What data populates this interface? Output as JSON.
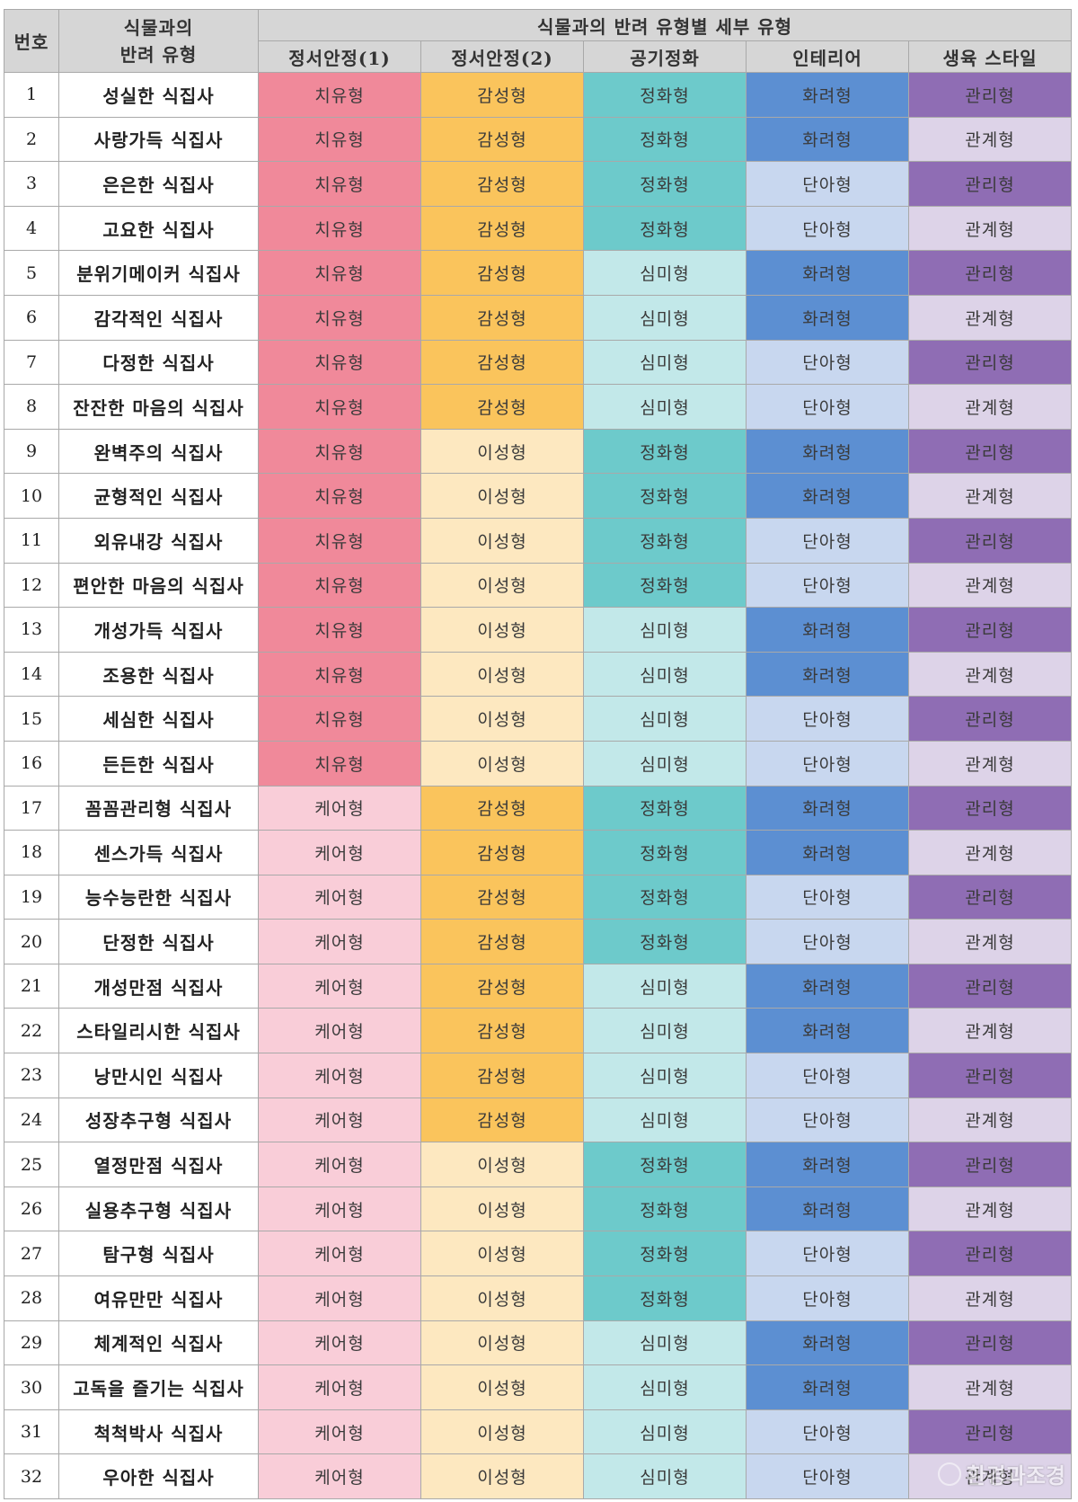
{
  "header": {
    "number": "번호",
    "type_title": "식물과의\n반려 유형",
    "group_title": "식물과의 반려 유형별 세부 유형",
    "columns": [
      "정서안정(1)",
      "정서안정(2)",
      "공기정화",
      "인테리어",
      "생육 스타일"
    ]
  },
  "colors": {
    "치유형": "#f0899a",
    "케어형": "#f9cdd8",
    "감성형": "#fac45c",
    "이성형": "#fde8c0",
    "정화형": "#6dcacb",
    "심미형": "#c2e8e9",
    "화려형": "#5c8fd2",
    "단아형": "#c8d7ef",
    "관리형": "#8f6db4",
    "관계형": "#ddd3e8"
  },
  "rows": [
    {
      "no": "1",
      "name": "성실한 식집사",
      "t": [
        "치유형",
        "감성형",
        "정화형",
        "화려형",
        "관리형"
      ]
    },
    {
      "no": "2",
      "name": "사랑가득 식집사",
      "t": [
        "치유형",
        "감성형",
        "정화형",
        "화려형",
        "관계형"
      ]
    },
    {
      "no": "3",
      "name": "은은한 식집사",
      "t": [
        "치유형",
        "감성형",
        "정화형",
        "단아형",
        "관리형"
      ]
    },
    {
      "no": "4",
      "name": "고요한 식집사",
      "t": [
        "치유형",
        "감성형",
        "정화형",
        "단아형",
        "관계형"
      ]
    },
    {
      "no": "5",
      "name": "분위기메이커 식집사",
      "t": [
        "치유형",
        "감성형",
        "심미형",
        "화려형",
        "관리형"
      ]
    },
    {
      "no": "6",
      "name": "감각적인 식집사",
      "t": [
        "치유형",
        "감성형",
        "심미형",
        "화려형",
        "관계형"
      ]
    },
    {
      "no": "7",
      "name": "다정한 식집사",
      "t": [
        "치유형",
        "감성형",
        "심미형",
        "단아형",
        "관리형"
      ]
    },
    {
      "no": "8",
      "name": "잔잔한 마음의 식집사",
      "t": [
        "치유형",
        "감성형",
        "심미형",
        "단아형",
        "관계형"
      ]
    },
    {
      "no": "9",
      "name": "완벽주의 식집사",
      "t": [
        "치유형",
        "이성형",
        "정화형",
        "화려형",
        "관리형"
      ]
    },
    {
      "no": "10",
      "name": "균형적인 식집사",
      "t": [
        "치유형",
        "이성형",
        "정화형",
        "화려형",
        "관계형"
      ]
    },
    {
      "no": "11",
      "name": "외유내강 식집사",
      "t": [
        "치유형",
        "이성형",
        "정화형",
        "단아형",
        "관리형"
      ]
    },
    {
      "no": "12",
      "name": "편안한 마음의 식집사",
      "t": [
        "치유형",
        "이성형",
        "정화형",
        "단아형",
        "관계형"
      ]
    },
    {
      "no": "13",
      "name": "개성가득 식집사",
      "t": [
        "치유형",
        "이성형",
        "심미형",
        "화려형",
        "관리형"
      ]
    },
    {
      "no": "14",
      "name": "조용한 식집사",
      "t": [
        "치유형",
        "이성형",
        "심미형",
        "화려형",
        "관계형"
      ]
    },
    {
      "no": "15",
      "name": "세심한 식집사",
      "t": [
        "치유형",
        "이성형",
        "심미형",
        "단아형",
        "관리형"
      ]
    },
    {
      "no": "16",
      "name": "든든한 식집사",
      "t": [
        "치유형",
        "이성형",
        "심미형",
        "단아형",
        "관계형"
      ]
    },
    {
      "no": "17",
      "name": "꼼꼼관리형 식집사",
      "t": [
        "케어형",
        "감성형",
        "정화형",
        "화려형",
        "관리형"
      ]
    },
    {
      "no": "18",
      "name": "센스가득 식집사",
      "t": [
        "케어형",
        "감성형",
        "정화형",
        "화려형",
        "관계형"
      ]
    },
    {
      "no": "19",
      "name": "능수능란한 식집사",
      "t": [
        "케어형",
        "감성형",
        "정화형",
        "단아형",
        "관리형"
      ]
    },
    {
      "no": "20",
      "name": "단정한 식집사",
      "t": [
        "케어형",
        "감성형",
        "정화형",
        "단아형",
        "관계형"
      ]
    },
    {
      "no": "21",
      "name": "개성만점 식집사",
      "t": [
        "케어형",
        "감성형",
        "심미형",
        "화려형",
        "관리형"
      ]
    },
    {
      "no": "22",
      "name": "스타일리시한 식집사",
      "t": [
        "케어형",
        "감성형",
        "심미형",
        "화려형",
        "관계형"
      ]
    },
    {
      "no": "23",
      "name": "낭만시인 식집사",
      "t": [
        "케어형",
        "감성형",
        "심미형",
        "단아형",
        "관리형"
      ]
    },
    {
      "no": "24",
      "name": "성장추구형 식집사",
      "t": [
        "케어형",
        "감성형",
        "심미형",
        "단아형",
        "관계형"
      ]
    },
    {
      "no": "25",
      "name": "열정만점 식집사",
      "t": [
        "케어형",
        "이성형",
        "정화형",
        "화려형",
        "관리형"
      ]
    },
    {
      "no": "26",
      "name": "실용추구형 식집사",
      "t": [
        "케어형",
        "이성형",
        "정화형",
        "화려형",
        "관계형"
      ]
    },
    {
      "no": "27",
      "name": "탐구형 식집사",
      "t": [
        "케어형",
        "이성형",
        "정화형",
        "단아형",
        "관리형"
      ]
    },
    {
      "no": "28",
      "name": "여유만만 식집사",
      "t": [
        "케어형",
        "이성형",
        "정화형",
        "단아형",
        "관계형"
      ]
    },
    {
      "no": "29",
      "name": "체계적인 식집사",
      "t": [
        "케어형",
        "이성형",
        "심미형",
        "화려형",
        "관리형"
      ]
    },
    {
      "no": "30",
      "name": "고독을 즐기는 식집사",
      "t": [
        "케어형",
        "이성형",
        "심미형",
        "화려형",
        "관계형"
      ]
    },
    {
      "no": "31",
      "name": "척척박사 식집사",
      "t": [
        "케어형",
        "이성형",
        "심미형",
        "단아형",
        "관리형"
      ]
    },
    {
      "no": "32",
      "name": "우아한 식집사",
      "t": [
        "케어형",
        "이성형",
        "심미형",
        "단아형",
        "관계형"
      ]
    }
  ],
  "watermark": "환경과조경"
}
